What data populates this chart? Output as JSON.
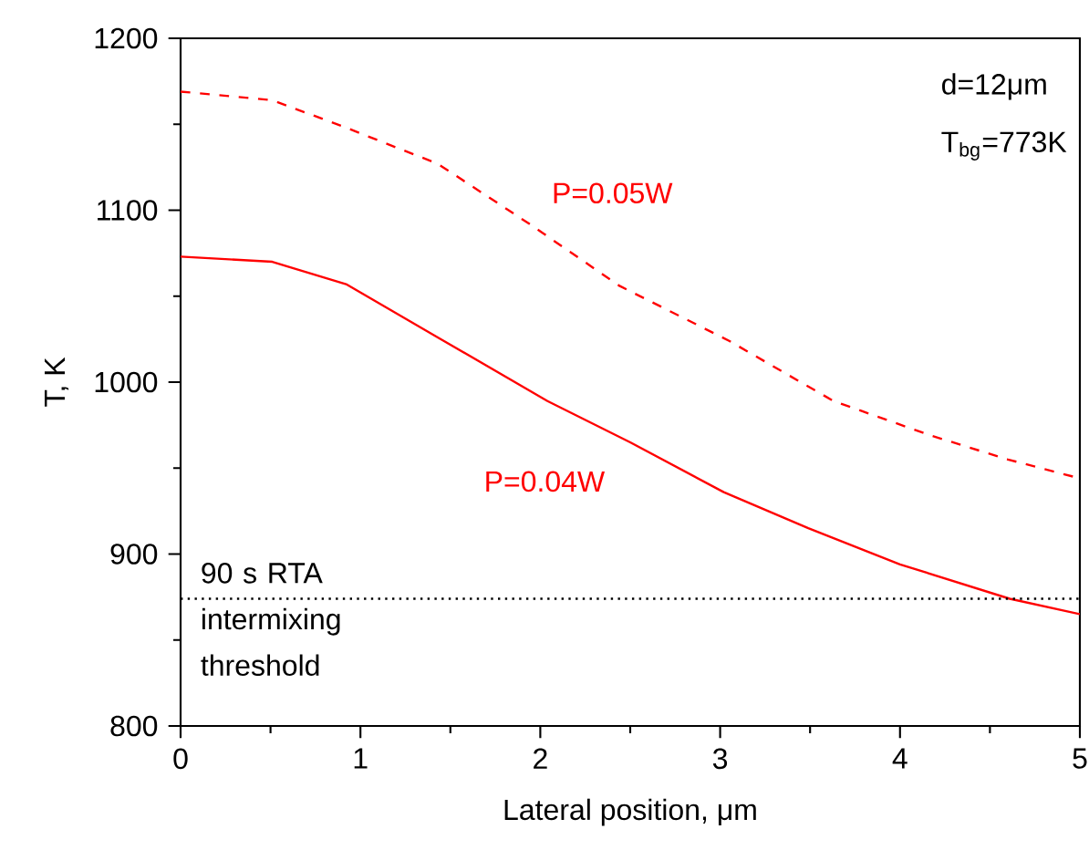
{
  "chart_data": {
    "type": "line",
    "xlabel": "Lateral position, μm",
    "ylabel": "T, K",
    "xlim": [
      0,
      5
    ],
    "ylim": [
      800,
      1200
    ],
    "xticks": [
      0,
      1,
      2,
      3,
      4,
      5
    ],
    "yticks": [
      800,
      900,
      1000,
      1100,
      1200
    ],
    "grid": false,
    "legend": false,
    "series": [
      {
        "name": "P=0.05W",
        "color": "#ff0000",
        "line_style": "dashed",
        "x": [
          0,
          0.51,
          0.92,
          1.43,
          1.94,
          2.44,
          3.05,
          3.63,
          4.17,
          4.6,
          5
        ],
        "values": [
          1169,
          1164,
          1148,
          1127,
          1092,
          1056,
          1024,
          989,
          969,
          955,
          944
        ]
      },
      {
        "name": "P=0.04W",
        "color": "#ff0000",
        "line_style": "solid",
        "x": [
          0,
          0.51,
          0.92,
          1.43,
          2.04,
          2.5,
          3.02,
          3.49,
          4.0,
          4.61,
          5
        ],
        "values": [
          1073,
          1070,
          1057,
          1026,
          989,
          965,
          936,
          915,
          894,
          874,
          865
        ]
      }
    ],
    "ref_lines": [
      {
        "axis": "y",
        "value": 874,
        "label": "90 s RTA intermixing threshold",
        "color": "#000000",
        "line_style": "dotted"
      }
    ],
    "annotations": [
      "d=12μm",
      "T$_{bg}$=773K"
    ]
  }
}
